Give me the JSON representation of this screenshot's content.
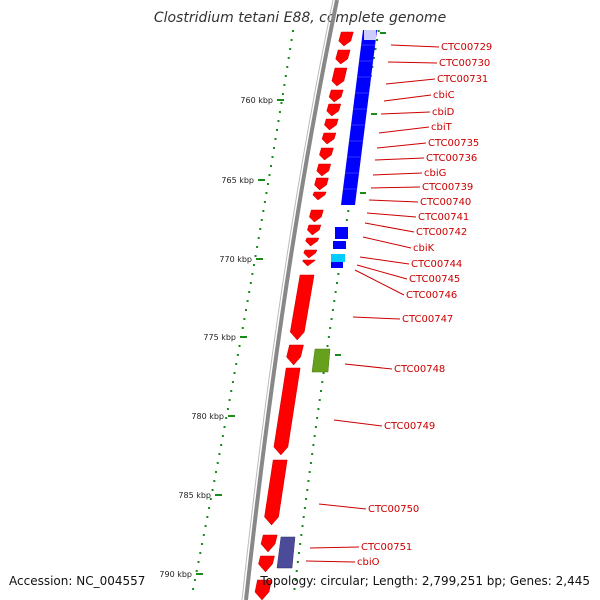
{
  "title": "Clostridium tetani E88, complete genome",
  "accession": "Accession: NC_004557",
  "summary": "Topology: circular; Length: 2,799,251 bp; Genes: 2,445",
  "colors": {
    "backbone": "#888888",
    "forward_gene": "#ff0000",
    "operon_block": "#0000ff",
    "light_blue_gene": "#00ccff",
    "olive_gene": "#66a01c",
    "navy_gene": "#4b4b9a",
    "tick": "#1a8a1a",
    "label": "#cc0000"
  },
  "kbp_ticks": [
    "760 kbp",
    "765 kbp",
    "770 kbp",
    "775 kbp",
    "780 kbp",
    "785 kbp",
    "790 kbp"
  ],
  "genes": [
    "CTC00729",
    "CTC00730",
    "CTC00731",
    "cbiC",
    "cbiD",
    "cbiT",
    "CTC00735",
    "CTC00736",
    "cbiG",
    "CTC00739",
    "CTC00740",
    "CTC00741",
    "CTC00742",
    "cbiK",
    "CTC00744",
    "CTC00745",
    "CTC00746",
    "CTC00747",
    "CTC00748",
    "CTC00749",
    "CTC00750",
    "CTC00751",
    "cbiO"
  ]
}
